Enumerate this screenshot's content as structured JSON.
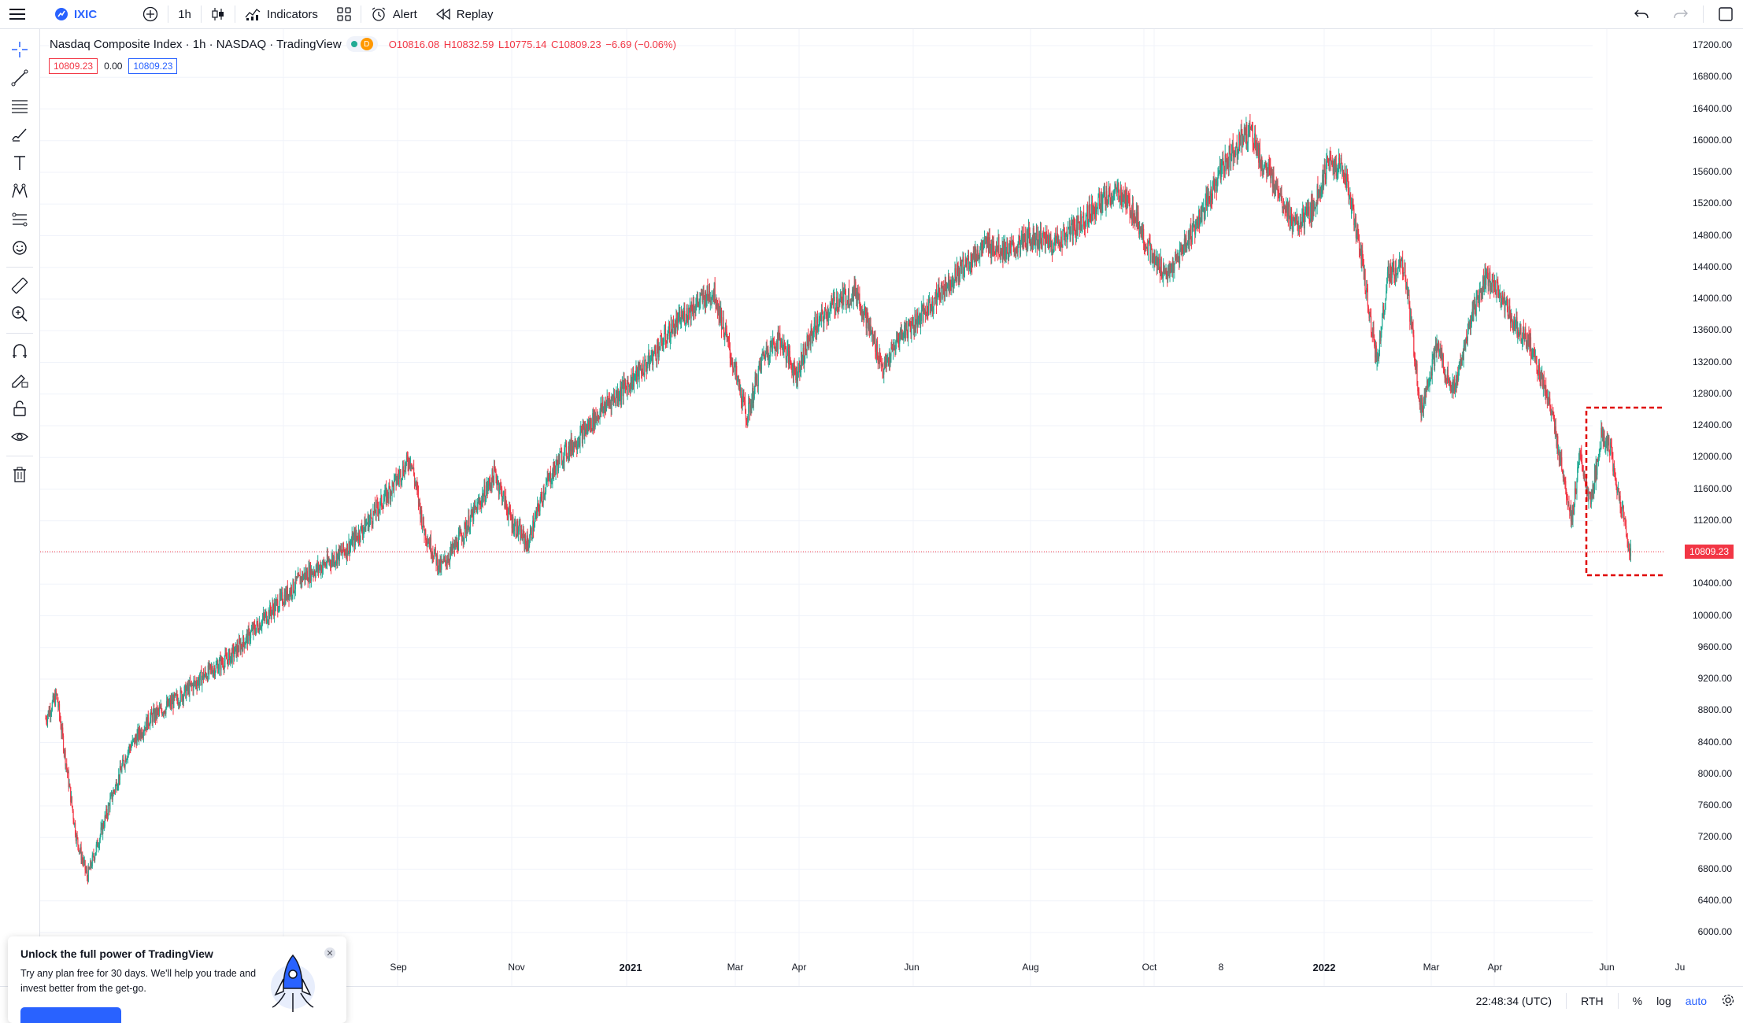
{
  "toolbar": {
    "symbol": "IXIC",
    "interval": "1h",
    "indicators_label": "Indicators",
    "alert_label": "Alert",
    "replay_label": "Replay"
  },
  "legend": {
    "title": "Nasdaq Composite Index · 1h · NASDAQ · TradingView",
    "badge": "D",
    "open": "O10816.08",
    "high": "H10832.59",
    "low": "L10775.14",
    "close": "C10809.23",
    "change": "−6.69 (−0.06%)"
  },
  "order": {
    "sell_price": "10809.23",
    "spread": "0.00",
    "buy_price": "10809.23"
  },
  "price_axis": {
    "labels": [
      "17200.00",
      "16800.00",
      "16400.00",
      "16000.00",
      "15600.00",
      "15200.00",
      "14800.00",
      "14400.00",
      "14000.00",
      "13600.00",
      "13200.00",
      "12800.00",
      "12400.00",
      "12000.00",
      "11600.00",
      "11200.00",
      "10400.00",
      "10000.00",
      "9600.00",
      "9200.00",
      "8800.00",
      "8400.00",
      "8000.00",
      "7600.00",
      "7200.00",
      "6800.00",
      "6400.00",
      "6000.00"
    ],
    "last_price": "10809.23"
  },
  "time_axis": {
    "labels": [
      {
        "text": "Sep",
        "bold": false
      },
      {
        "text": "Nov",
        "bold": false
      },
      {
        "text": "2021",
        "bold": true
      },
      {
        "text": "Mar",
        "bold": false
      },
      {
        "text": "Apr",
        "bold": false
      },
      {
        "text": "Jun",
        "bold": false
      },
      {
        "text": "Aug",
        "bold": false
      },
      {
        "text": "Oct",
        "bold": false
      },
      {
        "text": "8",
        "bold": false
      },
      {
        "text": "2022",
        "bold": true
      },
      {
        "text": "Mar",
        "bold": false
      },
      {
        "text": "Apr",
        "bold": false
      },
      {
        "text": "Jun",
        "bold": false
      },
      {
        "text": "Ju",
        "bold": false
      }
    ]
  },
  "bottom_bar": {
    "clock": "22:48:34 (UTC)",
    "session": "RTH",
    "percent": "%",
    "log": "log",
    "auto": "auto"
  },
  "promo": {
    "title": "Unlock the full power of TradingView",
    "text": "Try any plan free for 30 days. We'll help you trade and invest better from the get-go."
  },
  "colors": {
    "up": "#22ab94",
    "down": "#f23645",
    "accent": "#2962ff",
    "highlight_box": "#e00000"
  },
  "chart_data": {
    "type": "candlestick",
    "symbol": "IXIC",
    "interval": "1h",
    "ylim": [
      6000,
      17200
    ],
    "last_price": 10809.23,
    "path_points": [
      [
        0,
        8700
      ],
      [
        10,
        9000
      ],
      [
        18,
        8200
      ],
      [
        28,
        7200
      ],
      [
        38,
        6700
      ],
      [
        48,
        7150
      ],
      [
        60,
        7700
      ],
      [
        75,
        8300
      ],
      [
        95,
        8700
      ],
      [
        120,
        8950
      ],
      [
        145,
        9250
      ],
      [
        170,
        9500
      ],
      [
        195,
        9900
      ],
      [
        215,
        10200
      ],
      [
        235,
        10500
      ],
      [
        255,
        10650
      ],
      [
        275,
        10850
      ],
      [
        295,
        11200
      ],
      [
        315,
        11600
      ],
      [
        333,
        12000
      ],
      [
        345,
        11100
      ],
      [
        360,
        10600
      ],
      [
        375,
        10900
      ],
      [
        395,
        11400
      ],
      [
        410,
        11800
      ],
      [
        425,
        11200
      ],
      [
        440,
        10900
      ],
      [
        455,
        11600
      ],
      [
        470,
        12000
      ],
      [
        490,
        12300
      ],
      [
        510,
        12650
      ],
      [
        530,
        12900
      ],
      [
        550,
        13200
      ],
      [
        570,
        13600
      ],
      [
        590,
        13900
      ],
      [
        610,
        14100
      ],
      [
        625,
        13300
      ],
      [
        640,
        12500
      ],
      [
        655,
        13300
      ],
      [
        670,
        13500
      ],
      [
        685,
        13050
      ],
      [
        700,
        13600
      ],
      [
        720,
        13950
      ],
      [
        740,
        14100
      ],
      [
        755,
        13500
      ],
      [
        765,
        13100
      ],
      [
        780,
        13550
      ],
      [
        800,
        13800
      ],
      [
        820,
        14150
      ],
      [
        840,
        14450
      ],
      [
        860,
        14700
      ],
      [
        880,
        14600
      ],
      [
        900,
        14800
      ],
      [
        920,
        14700
      ],
      [
        940,
        14900
      ],
      [
        960,
        15200
      ],
      [
        980,
        15350
      ],
      [
        995,
        15050
      ],
      [
        1010,
        14500
      ],
      [
        1025,
        14300
      ],
      [
        1040,
        14700
      ],
      [
        1060,
        15200
      ],
      [
        1075,
        15700
      ],
      [
        1090,
        16000
      ],
      [
        1100,
        16150
      ],
      [
        1110,
        15700
      ],
      [
        1125,
        15400
      ],
      [
        1140,
        14900
      ],
      [
        1155,
        15100
      ],
      [
        1170,
        15700
      ],
      [
        1185,
        15650
      ],
      [
        1200,
        14600
      ],
      [
        1215,
        13200
      ],
      [
        1225,
        14300
      ],
      [
        1240,
        14400
      ],
      [
        1255,
        12600
      ],
      [
        1270,
        13400
      ],
      [
        1285,
        12800
      ],
      [
        1300,
        13700
      ],
      [
        1315,
        14300
      ],
      [
        1325,
        14100
      ],
      [
        1340,
        13700
      ],
      [
        1355,
        13400
      ],
      [
        1370,
        12800
      ],
      [
        1385,
        11800
      ],
      [
        1393,
        11200
      ],
      [
        1400,
        12000
      ],
      [
        1410,
        11400
      ],
      [
        1420,
        12300
      ],
      [
        1428,
        12100
      ],
      [
        1432,
        11700
      ],
      [
        1438,
        11400
      ],
      [
        1444,
        10900
      ],
      [
        1447,
        10809
      ]
    ]
  }
}
